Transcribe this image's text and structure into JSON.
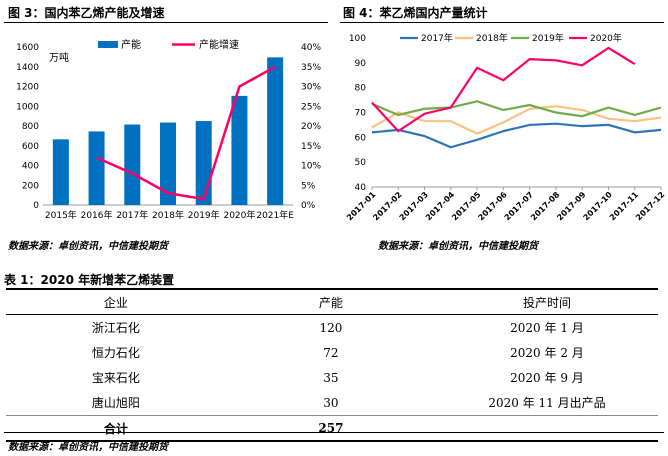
{
  "figure3": {
    "title": "图 3：国内苯乙烯产能及增速",
    "source": "数据来源：卓创资讯，中信建投期货",
    "chart_data": {
      "type": "bar+line",
      "categories": [
        "2015年",
        "2016年",
        "2017年",
        "2018年",
        "2019年",
        "2020年",
        "2021年E"
      ],
      "left_unit": "万吨",
      "left_ticks": [
        "0",
        "200",
        "400",
        "600",
        "800",
        "1000",
        "1200",
        "1400",
        "1600"
      ],
      "right_ticks": [
        "0%",
        "5%",
        "10%",
        "15%",
        "20%",
        "25%",
        "30%",
        "35%",
        "40%"
      ],
      "ylim_left": [
        0,
        1600
      ],
      "ylim_right": [
        0,
        40
      ],
      "series": [
        {
          "name": "产能",
          "type": "bar",
          "color": "#0070c0",
          "values": [
            665,
            745,
            815,
            835,
            850,
            1105,
            1495
          ]
        },
        {
          "name": "产能增速",
          "type": "line",
          "color": "#ff0066",
          "values": [
            null,
            12.0,
            8.0,
            3.0,
            1.5,
            30.0,
            35.0
          ]
        }
      ],
      "legend_position": "top"
    }
  },
  "figure4": {
    "title": "图 4：苯乙烯国内产量统计",
    "source": "数据来源：卓创资讯，中信建投期货",
    "chart_data": {
      "type": "line",
      "categories": [
        "2017-01",
        "2017-02",
        "2017-03",
        "2017-04",
        "2017-05",
        "2017-06",
        "2017-07",
        "2017-08",
        "2017-09",
        "2017-10",
        "2017-11",
        "2017-12"
      ],
      "y_ticks": [
        "40",
        "50",
        "60",
        "70",
        "80",
        "90",
        "100"
      ],
      "ylim": [
        40,
        100
      ],
      "series": [
        {
          "name": "2017年",
          "color": "#2e75b6",
          "values": [
            62,
            63,
            60.5,
            56,
            59,
            62.5,
            65,
            65.5,
            64.5,
            65,
            62,
            63
          ]
        },
        {
          "name": "2018年",
          "color": "#ffc080",
          "values": [
            64,
            70,
            66.5,
            66.5,
            61.5,
            66,
            71.5,
            72.5,
            71,
            67.5,
            66.5,
            68
          ]
        },
        {
          "name": "2019年",
          "color": "#70ad47",
          "values": [
            73.5,
            69,
            71.5,
            72,
            74.5,
            71,
            73,
            70,
            68.5,
            72,
            69,
            72
          ]
        },
        {
          "name": "2020年",
          "color": "#ff0066",
          "values": [
            74,
            62.5,
            69.5,
            72,
            88,
            83,
            91.5,
            91,
            89,
            96,
            89.5,
            null
          ]
        }
      ],
      "legend_position": "top"
    }
  },
  "table1": {
    "title": "表 1：2020 年新增苯乙烯装置",
    "headers": [
      "企业",
      "产能",
      "投产时间"
    ],
    "rows": [
      [
        "浙江石化",
        "120",
        "2020 年 1 月"
      ],
      [
        "恒力石化",
        "72",
        "2020 年 2 月"
      ],
      [
        "宝来石化",
        "35",
        "2020 年 9 月"
      ],
      [
        "唐山旭阳",
        "30",
        "2020 年 11 月出产品"
      ]
    ],
    "total": {
      "label": "合计",
      "value": "257"
    },
    "source": "数据来源：卓创资讯，中信建投期货"
  }
}
